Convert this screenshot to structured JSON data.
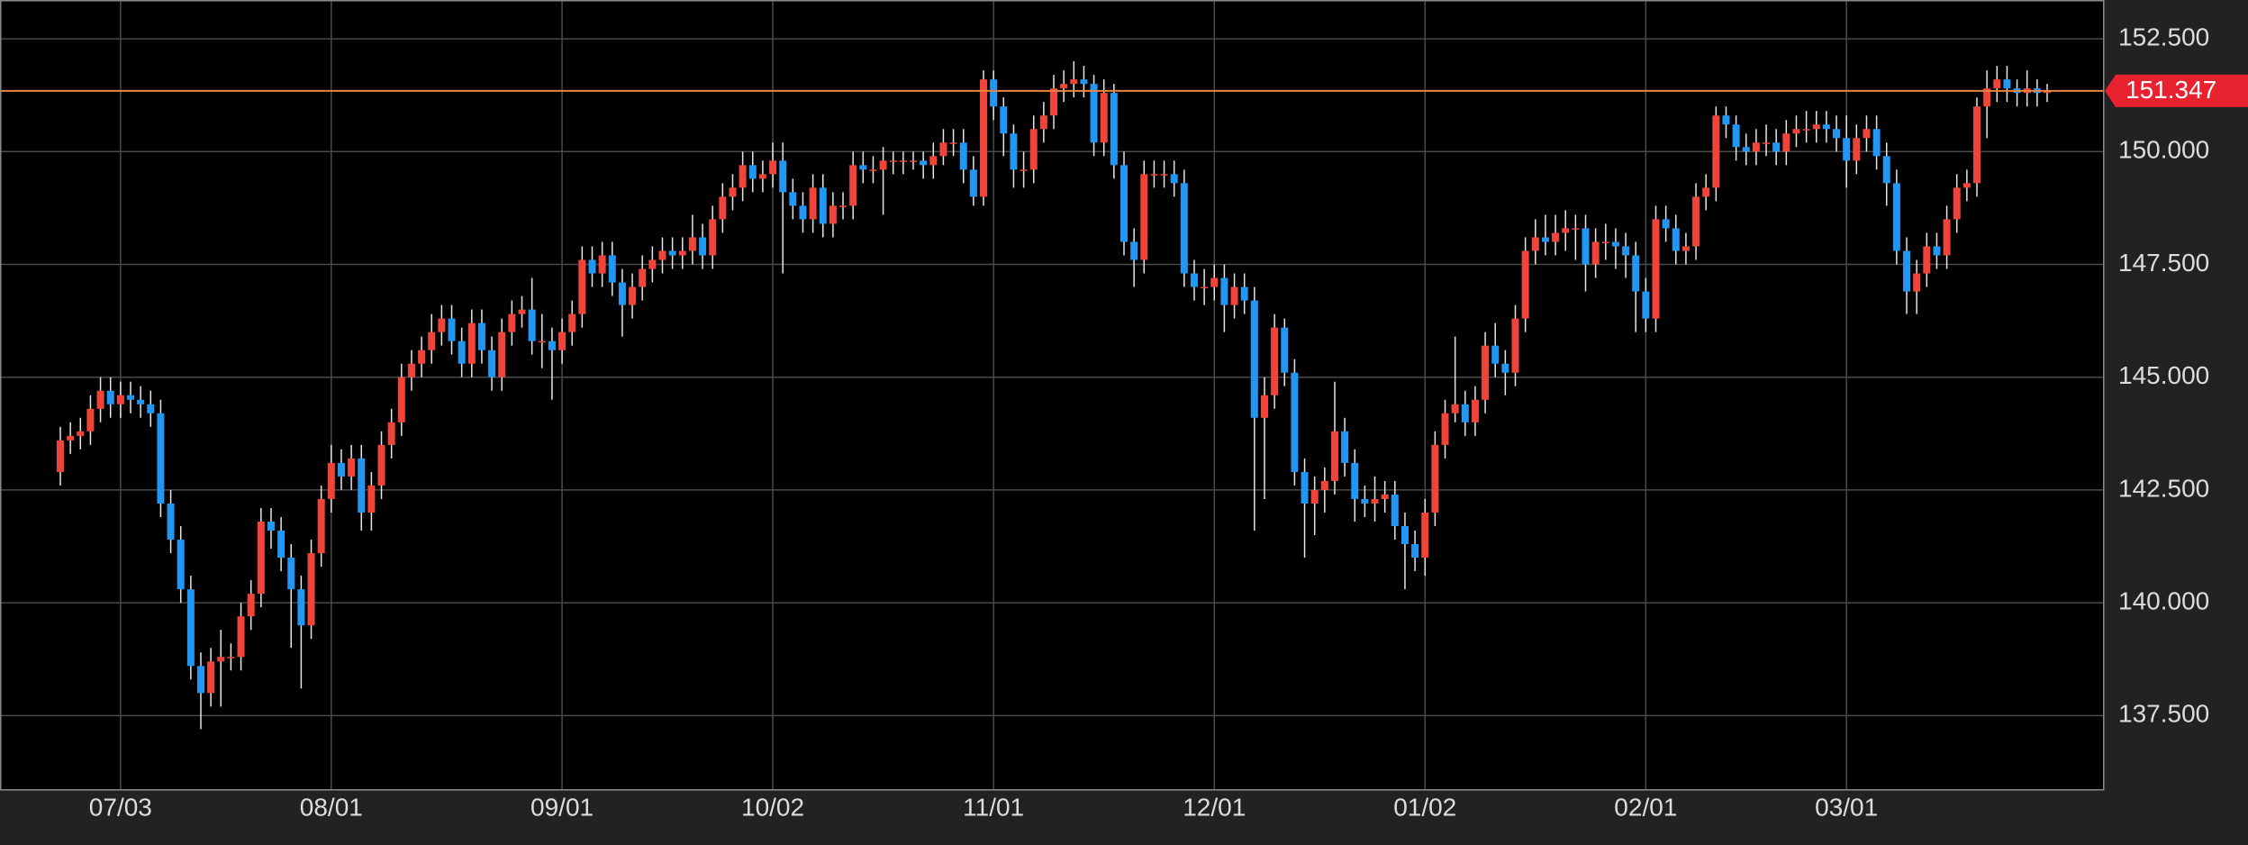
{
  "chart_data": {
    "type": "candlestick",
    "categories": [
      null,
      null,
      null,
      null,
      null,
      null,
      "07/03",
      null,
      null,
      null,
      null,
      null,
      null,
      null,
      null,
      null,
      null,
      null,
      null,
      null,
      null,
      null,
      null,
      null,
      null,
      null,
      null,
      "08/01",
      null,
      null,
      null,
      null,
      null,
      null,
      null,
      null,
      null,
      null,
      null,
      null,
      null,
      null,
      null,
      null,
      null,
      null,
      null,
      null,
      null,
      null,
      "09/01",
      null,
      null,
      null,
      null,
      null,
      null,
      null,
      null,
      null,
      null,
      null,
      null,
      null,
      null,
      null,
      null,
      null,
      null,
      null,
      null,
      "10/02",
      null,
      null,
      null,
      null,
      null,
      null,
      null,
      null,
      null,
      null,
      null,
      null,
      null,
      null,
      null,
      null,
      null,
      null,
      null,
      null,
      null,
      "11/01",
      null,
      null,
      null,
      null,
      null,
      null,
      null,
      null,
      null,
      null,
      null,
      null,
      null,
      null,
      null,
      null,
      null,
      null,
      null,
      null,
      null,
      "12/01",
      null,
      null,
      null,
      null,
      null,
      null,
      null,
      null,
      null,
      null,
      null,
      null,
      null,
      null,
      null,
      null,
      null,
      null,
      null,
      null,
      "01/02",
      null,
      null,
      null,
      null,
      null,
      null,
      null,
      null,
      null,
      null,
      null,
      null,
      null,
      null,
      null,
      null,
      null,
      null,
      null,
      null,
      null,
      "02/01",
      null,
      null,
      null,
      null,
      null,
      null,
      null,
      null,
      null,
      null,
      null,
      null,
      null,
      null,
      null,
      null,
      null,
      null,
      null,
      "03/01",
      null,
      null,
      null,
      null,
      null,
      null,
      null,
      null,
      null,
      null,
      null,
      null,
      null,
      null,
      null,
      null,
      null,
      null,
      null,
      null
    ],
    "open": [
      142.9,
      143.6,
      143.7,
      143.8,
      144.3,
      144.7,
      144.4,
      144.6,
      144.5,
      144.4,
      144.2,
      142.2,
      141.4,
      140.3,
      138.6,
      138.0,
      138.7,
      138.8,
      138.8,
      139.7,
      140.2,
      141.8,
      141.6,
      141.0,
      140.3,
      139.5,
      141.1,
      142.3,
      143.1,
      142.8,
      143.2,
      142.0,
      142.6,
      143.5,
      144.0,
      145.0,
      145.3,
      145.6,
      146.0,
      146.3,
      145.8,
      145.3,
      146.2,
      145.6,
      145.0,
      146.0,
      146.4,
      146.5,
      145.8,
      145.8,
      145.6,
      146.0,
      146.4,
      147.6,
      147.3,
      147.7,
      147.1,
      146.6,
      147.0,
      147.4,
      147.6,
      147.8,
      147.7,
      147.8,
      148.1,
      147.7,
      148.5,
      149.0,
      149.2,
      149.7,
      149.4,
      149.5,
      149.8,
      149.1,
      148.8,
      148.5,
      149.2,
      148.4,
      148.8,
      148.8,
      149.7,
      149.6,
      149.6,
      149.8,
      149.8,
      149.8,
      149.8,
      149.7,
      149.9,
      150.2,
      150.2,
      149.6,
      149.0,
      151.6,
      151.0,
      150.4,
      149.6,
      149.6,
      150.5,
      150.8,
      151.4,
      151.5,
      151.6,
      151.5,
      150.2,
      151.3,
      149.7,
      148.0,
      147.6,
      149.5,
      149.5,
      149.5,
      149.3,
      147.3,
      147.0,
      147.0,
      147.2,
      146.6,
      147.0,
      146.7,
      144.1,
      144.6,
      146.1,
      145.1,
      142.9,
      142.2,
      142.5,
      142.7,
      143.8,
      143.1,
      142.3,
      142.2,
      142.3,
      142.4,
      141.7,
      141.3,
      141.0,
      142.0,
      143.5,
      144.2,
      144.4,
      144.0,
      144.5,
      145.7,
      145.3,
      145.1,
      146.3,
      147.8,
      148.1,
      148.0,
      148.2,
      148.3,
      148.3,
      147.5,
      148.0,
      148.0,
      147.9,
      147.7,
      146.9,
      146.3,
      148.5,
      148.3,
      147.8,
      147.9,
      149.0,
      149.2,
      150.8,
      150.6,
      150.1,
      150.0,
      150.2,
      150.2,
      150.0,
      150.4,
      150.5,
      150.5,
      150.6,
      150.5,
      150.3,
      149.8,
      150.3,
      150.5,
      149.9,
      149.3,
      147.8,
      146.9,
      147.3,
      147.9,
      147.7,
      148.5,
      149.2,
      149.3,
      151.0,
      151.4,
      151.6,
      151.4,
      151.3,
      151.4,
      151.3
    ],
    "high": [
      143.9,
      144.0,
      144.1,
      144.6,
      145.0,
      145.0,
      144.9,
      144.9,
      144.8,
      144.7,
      144.5,
      142.5,
      141.7,
      140.6,
      138.9,
      139.0,
      139.4,
      139.1,
      140.0,
      140.5,
      142.1,
      142.1,
      141.9,
      141.3,
      140.6,
      141.4,
      142.6,
      143.5,
      143.4,
      143.5,
      143.5,
      142.9,
      143.8,
      144.3,
      145.3,
      145.6,
      145.9,
      146.4,
      146.6,
      146.6,
      146.1,
      146.5,
      146.5,
      145.9,
      146.3,
      146.7,
      146.8,
      147.2,
      146.4,
      146.1,
      146.3,
      146.7,
      147.9,
      147.9,
      148.0,
      148.0,
      147.4,
      147.3,
      147.7,
      147.9,
      148.1,
      148.1,
      148.1,
      148.6,
      148.4,
      148.8,
      149.3,
      149.5,
      150.0,
      150.0,
      149.8,
      150.2,
      150.2,
      149.4,
      149.1,
      149.5,
      149.5,
      149.1,
      149.1,
      150.0,
      150.0,
      149.9,
      150.1,
      150.0,
      150.0,
      150.0,
      150.0,
      150.2,
      150.5,
      150.5,
      150.5,
      149.9,
      151.8,
      151.8,
      151.2,
      150.6,
      150.0,
      150.8,
      151.1,
      151.7,
      151.8,
      152.0,
      151.9,
      151.7,
      151.6,
      151.5,
      150.0,
      148.3,
      149.8,
      149.8,
      149.8,
      149.8,
      149.6,
      147.6,
      147.4,
      147.5,
      147.5,
      147.3,
      147.3,
      147.0,
      145.0,
      146.4,
      146.3,
      145.4,
      143.2,
      142.8,
      143.0,
      144.9,
      144.1,
      143.4,
      142.6,
      142.8,
      142.7,
      142.7,
      142.0,
      141.6,
      142.3,
      143.8,
      144.5,
      145.9,
      144.7,
      144.8,
      146.0,
      146.2,
      145.6,
      146.6,
      148.1,
      148.5,
      148.6,
      148.6,
      148.7,
      148.6,
      148.6,
      148.3,
      148.4,
      148.3,
      148.2,
      148.0,
      147.2,
      148.8,
      148.8,
      148.6,
      148.2,
      149.3,
      149.5,
      151.0,
      151.0,
      150.8,
      150.4,
      150.5,
      150.6,
      150.5,
      150.7,
      150.8,
      150.9,
      150.9,
      150.9,
      150.8,
      150.8,
      150.6,
      150.8,
      150.8,
      150.2,
      149.6,
      148.1,
      147.6,
      148.2,
      148.2,
      148.8,
      149.5,
      149.6,
      151.2,
      151.8,
      151.9,
      151.9,
      151.6,
      151.8,
      151.6,
      151.5
    ],
    "low": [
      142.6,
      143.3,
      143.4,
      143.5,
      144.0,
      144.1,
      144.1,
      144.2,
      144.1,
      143.9,
      141.9,
      141.1,
      140.0,
      138.3,
      137.2,
      137.7,
      137.7,
      138.5,
      138.5,
      139.4,
      139.9,
      141.2,
      140.7,
      139.0,
      138.1,
      139.2,
      140.8,
      142.0,
      142.5,
      142.5,
      141.6,
      141.6,
      142.3,
      143.2,
      143.7,
      144.7,
      145.0,
      145.3,
      145.7,
      145.5,
      145.0,
      145.0,
      145.3,
      144.7,
      144.7,
      145.7,
      146.1,
      145.5,
      145.2,
      144.5,
      145.3,
      145.7,
      146.1,
      147.0,
      147.0,
      146.8,
      145.9,
      146.3,
      146.7,
      147.1,
      147.3,
      147.4,
      147.4,
      147.5,
      147.4,
      147.4,
      148.2,
      148.7,
      148.9,
      149.1,
      149.1,
      149.2,
      147.3,
      148.5,
      148.2,
      148.2,
      148.1,
      148.1,
      148.5,
      148.5,
      149.3,
      149.3,
      148.6,
      149.5,
      149.5,
      149.6,
      149.4,
      149.4,
      149.7,
      149.9,
      149.3,
      148.8,
      148.8,
      150.7,
      149.9,
      149.2,
      149.2,
      149.3,
      150.2,
      150.5,
      151.1,
      151.2,
      151.2,
      149.9,
      149.9,
      149.4,
      147.7,
      147.0,
      147.3,
      149.2,
      149.2,
      149.0,
      147.0,
      146.7,
      146.6,
      146.7,
      146.0,
      146.3,
      146.4,
      141.6,
      142.3,
      144.3,
      144.8,
      142.6,
      141.0,
      141.5,
      142.0,
      142.4,
      142.8,
      141.8,
      141.9,
      141.8,
      142.0,
      141.4,
      140.3,
      140.7,
      140.6,
      141.7,
      143.2,
      144.0,
      143.7,
      143.7,
      144.2,
      145.0,
      144.6,
      144.8,
      146.0,
      147.5,
      147.7,
      147.7,
      147.8,
      147.6,
      146.9,
      147.2,
      147.6,
      147.4,
      147.2,
      146.0,
      146.0,
      146.0,
      148.0,
      147.5,
      147.5,
      147.6,
      148.7,
      148.9,
      150.3,
      149.8,
      149.7,
      149.7,
      149.9,
      149.7,
      149.7,
      150.1,
      150.2,
      150.2,
      150.2,
      150.0,
      149.2,
      149.5,
      150.0,
      149.6,
      148.8,
      147.5,
      146.4,
      146.4,
      147.0,
      147.4,
      147.4,
      148.2,
      148.9,
      149.0,
      150.3,
      151.1,
      151.1,
      151.0,
      151.0,
      151.0,
      151.1
    ],
    "close": [
      143.6,
      143.7,
      143.8,
      144.3,
      144.7,
      144.4,
      144.6,
      144.5,
      144.4,
      144.2,
      142.2,
      141.4,
      140.3,
      138.6,
      138.0,
      138.7,
      138.8,
      138.8,
      139.7,
      140.2,
      141.8,
      141.6,
      141.0,
      140.3,
      139.5,
      141.1,
      142.3,
      143.1,
      142.8,
      143.2,
      142.0,
      142.6,
      143.5,
      144.0,
      145.0,
      145.3,
      145.6,
      146.0,
      146.3,
      145.8,
      145.3,
      146.2,
      145.6,
      145.0,
      146.0,
      146.4,
      146.5,
      145.8,
      145.8,
      145.6,
      146.0,
      146.4,
      147.6,
      147.3,
      147.7,
      147.1,
      146.6,
      147.0,
      147.4,
      147.6,
      147.8,
      147.7,
      147.8,
      148.1,
      147.7,
      148.5,
      149.0,
      149.2,
      149.7,
      149.4,
      149.5,
      149.8,
      149.1,
      148.8,
      148.5,
      149.2,
      148.4,
      148.8,
      148.8,
      149.7,
      149.6,
      149.6,
      149.8,
      149.8,
      149.8,
      149.8,
      149.7,
      149.9,
      150.2,
      150.2,
      149.6,
      149.0,
      151.6,
      151.0,
      150.4,
      149.6,
      149.6,
      150.5,
      150.8,
      151.4,
      151.5,
      151.6,
      151.5,
      150.2,
      151.3,
      149.7,
      148.0,
      147.6,
      149.5,
      149.5,
      149.5,
      149.3,
      147.3,
      147.0,
      147.0,
      147.2,
      146.6,
      147.0,
      146.7,
      144.1,
      144.6,
      146.1,
      145.1,
      142.9,
      142.2,
      142.5,
      142.7,
      143.8,
      143.1,
      142.3,
      142.2,
      142.3,
      142.4,
      141.7,
      141.3,
      141.0,
      142.0,
      143.5,
      144.2,
      144.4,
      144.0,
      144.5,
      145.7,
      145.3,
      145.1,
      146.3,
      147.8,
      148.1,
      148.0,
      148.2,
      148.3,
      148.3,
      147.5,
      148.0,
      148.0,
      147.9,
      147.7,
      146.9,
      146.3,
      148.5,
      148.3,
      147.8,
      147.9,
      149.0,
      149.2,
      150.8,
      150.6,
      150.1,
      150.0,
      150.2,
      150.2,
      150.0,
      150.4,
      150.5,
      150.5,
      150.6,
      150.5,
      150.3,
      149.8,
      150.3,
      150.5,
      149.9,
      149.3,
      147.8,
      146.9,
      147.3,
      147.9,
      147.7,
      148.5,
      149.2,
      149.3,
      151.0,
      151.4,
      151.6,
      151.4,
      151.3,
      151.4,
      151.3,
      151.35
    ],
    "up_color": "#f0443a",
    "down_color": "#2196f3",
    "current_price": 151.347,
    "current_price_color": "#e8222e",
    "price_line_color": "#e8843e",
    "ylim": [
      135.85,
      153.36
    ],
    "yticks": [
      {
        "value": 137.5,
        "label": "137.500"
      },
      {
        "value": 140,
        "label": "140.000"
      },
      {
        "value": 142.5,
        "label": "142.500"
      },
      {
        "value": 145,
        "label": "145.000"
      },
      {
        "value": 147.5,
        "label": "147.500"
      },
      {
        "value": 150,
        "label": "150.000"
      },
      {
        "value": 152.5,
        "label": "152.500"
      }
    ],
    "grid": true
  }
}
